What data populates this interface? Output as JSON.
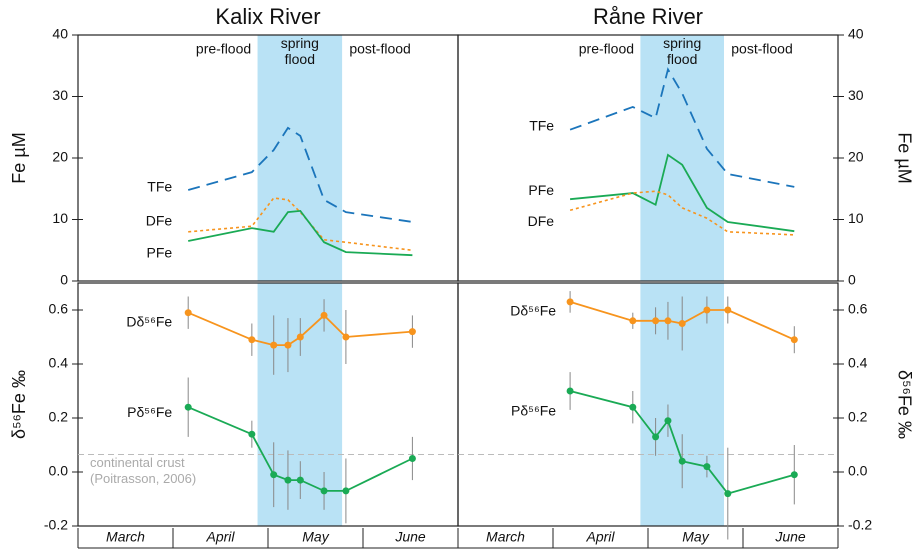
{
  "chart_data": [
    {
      "type": "line",
      "title": "Kalix River",
      "ylabel": "Fe µM",
      "xlim": [
        0,
        4
      ],
      "ylim": [
        0,
        40
      ],
      "yticks": [
        0,
        10,
        20,
        30,
        40
      ],
      "shaded_region": [
        1.89,
        2.78
      ],
      "regions": [
        "pre-flood",
        "spring flood",
        "post-flood"
      ],
      "x": [
        1.16,
        1.83,
        2.06,
        2.21,
        2.34,
        2.59,
        2.82,
        3.52
      ],
      "series": [
        {
          "name": "TFe",
          "color": "#1b75bb",
          "dash": "dashed",
          "values": [
            14.8,
            17.7,
            21.3,
            24.9,
            23.6,
            13.2,
            11.2,
            9.6
          ]
        },
        {
          "name": "DFe",
          "color": "#f7941d",
          "dash": "dotted",
          "values": [
            8.0,
            8.9,
            13.5,
            13.2,
            11.2,
            6.7,
            6.3,
            5.0
          ]
        },
        {
          "name": "PFe",
          "color": "#1aaa55",
          "dash": "solid",
          "values": [
            6.5,
            8.6,
            8.0,
            11.2,
            11.4,
            6.3,
            4.7,
            4.2
          ]
        }
      ]
    },
    {
      "type": "line",
      "ylabel": "δ⁵⁶Fe ‰",
      "xlim": [
        0,
        4
      ],
      "ylim": [
        -0.2,
        0.7
      ],
      "yticks": [
        -0.2,
        {
          "value": 0,
          "label": "0.0"
        },
        0.2,
        0.4,
        0.6
      ],
      "shaded_region": [
        1.89,
        2.78
      ],
      "categories": [
        "March",
        "April",
        "May",
        "June"
      ],
      "reference_line": {
        "value": 0.065,
        "label": [
          "continental crust",
          "(Poitrasson, 2006)"
        ]
      },
      "x": [
        1.16,
        1.83,
        2.06,
        2.21,
        2.34,
        2.59,
        2.82,
        3.52
      ],
      "series": [
        {
          "name": "Dδ⁵⁶Fe",
          "color": "#f7941d",
          "dash": "solid",
          "values": [
            0.59,
            0.49,
            0.47,
            0.47,
            0.5,
            0.58,
            0.5,
            0.52
          ],
          "errors": [
            0.06,
            0.06,
            0.11,
            0.1,
            0.07,
            0.06,
            0.1,
            0.06
          ]
        },
        {
          "name": "Pδ⁵⁶Fe",
          "color": "#1aaa55",
          "dash": "solid",
          "values": [
            0.24,
            0.14,
            -0.01,
            -0.03,
            -0.03,
            -0.07,
            -0.07,
            0.05
          ],
          "errors": [
            0.11,
            0.05,
            0.12,
            0.11,
            0.07,
            0.07,
            0.12,
            0.08
          ]
        }
      ]
    },
    {
      "type": "line",
      "title": "Råne River",
      "ylabel": "Fe µM",
      "xlim": [
        0,
        4
      ],
      "ylim": [
        0,
        40
      ],
      "yticks": [
        0,
        10,
        20,
        30,
        40
      ],
      "shaded_region": [
        1.92,
        2.8
      ],
      "regions": [
        "pre-flood",
        "spring flood",
        "post-flood"
      ],
      "x": [
        1.18,
        1.84,
        2.08,
        2.21,
        2.36,
        2.62,
        2.84,
        3.54
      ],
      "series": [
        {
          "name": "TFe",
          "color": "#1b75bb",
          "dash": "dashed",
          "values": [
            24.6,
            28.3,
            26.5,
            34.4,
            30.5,
            21.5,
            17.4,
            15.3
          ]
        },
        {
          "name": "PFe",
          "color": "#1aaa55",
          "dash": "solid",
          "values": [
            13.3,
            14.3,
            12.4,
            20.5,
            18.9,
            11.9,
            9.6,
            8.1
          ]
        },
        {
          "name": "DFe",
          "color": "#f7941d",
          "dash": "dotted",
          "values": [
            11.5,
            14.3,
            14.6,
            14.0,
            11.9,
            10.2,
            8.0,
            7.5
          ]
        }
      ]
    },
    {
      "type": "line",
      "ylabel": "δ⁵⁶Fe ‰",
      "xlim": [
        0,
        4
      ],
      "ylim": [
        -0.2,
        0.7
      ],
      "yticks": [
        -0.2,
        {
          "value": 0,
          "label": "0.0"
        },
        0.2,
        0.4,
        0.6
      ],
      "shaded_region": [
        1.92,
        2.8
      ],
      "categories": [
        "March",
        "April",
        "May",
        "June"
      ],
      "reference_line": {
        "value": 0.065
      },
      "x": [
        1.18,
        1.84,
        2.08,
        2.21,
        2.36,
        2.62,
        2.84,
        3.54
      ],
      "series": [
        {
          "name": "Dδ⁵⁶Fe",
          "color": "#f7941d",
          "dash": "solid",
          "values": [
            0.63,
            0.56,
            0.56,
            0.56,
            0.55,
            0.6,
            0.6,
            0.49
          ],
          "errors": [
            0.04,
            0.03,
            0.05,
            0.07,
            0.1,
            0.05,
            0.05,
            0.05
          ]
        },
        {
          "name": "Pδ⁵⁶Fe",
          "color": "#1aaa55",
          "dash": "solid",
          "values": [
            0.3,
            0.24,
            0.13,
            0.19,
            0.04,
            0.02,
            -0.08,
            -0.01
          ],
          "errors": [
            0.07,
            0.06,
            0.07,
            0.06,
            0.1,
            0.04,
            0.17,
            0.11
          ]
        }
      ]
    }
  ]
}
